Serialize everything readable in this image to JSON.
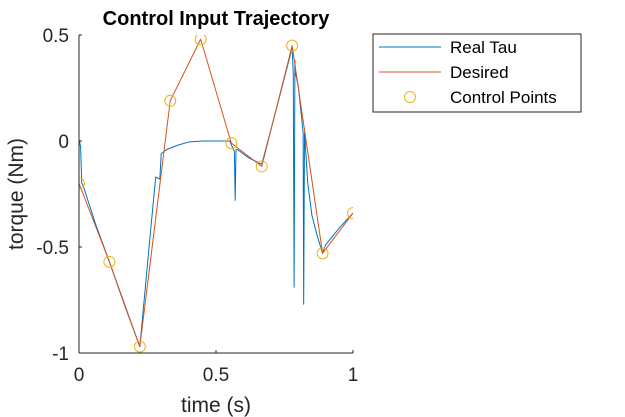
{
  "chart_data": {
    "type": "line",
    "title": "Control Input Trajectory",
    "xlabel": "time (s)",
    "ylabel": "torque (Nm)",
    "xlim": [
      0,
      1
    ],
    "ylim": [
      -1,
      0.5
    ],
    "xticks": [
      0,
      0.5,
      1
    ],
    "xtick_labels": [
      "0",
      "0.5",
      "1"
    ],
    "yticks": [
      0.5,
      0,
      -0.5,
      -1
    ],
    "ytick_labels": [
      "0.5",
      "0",
      "-0.5",
      "-1"
    ],
    "grid": false,
    "legend_position": "outside-right-top",
    "series": [
      {
        "name": "Real Tau",
        "color": "#0072BD",
        "style": "line",
        "x": [
          0,
          0.002,
          0.006,
          0.01,
          0.015,
          0.06,
          0.111,
          0.165,
          0.222,
          0.24,
          0.26,
          0.28,
          0.295,
          0.3,
          0.32,
          0.34,
          0.36,
          0.4,
          0.45,
          0.5,
          0.55,
          0.567,
          0.57,
          0.573,
          0.578,
          0.62,
          0.667,
          0.72,
          0.778,
          0.782,
          0.785,
          0.788,
          0.79,
          0.8,
          0.81,
          0.818,
          0.82,
          0.823,
          0.825,
          0.826,
          0.835,
          0.85,
          0.87,
          0.889,
          0.9,
          0.95,
          1.0
        ],
        "y": [
          0,
          0.0,
          -0.03,
          -0.2,
          -0.21,
          -0.39,
          -0.57,
          -0.77,
          -0.97,
          -0.72,
          -0.44,
          -0.17,
          -0.18,
          -0.06,
          -0.04,
          -0.03,
          -0.02,
          -0.005,
          0.0,
          0.0,
          0.0,
          -0.05,
          -0.28,
          -0.04,
          -0.04,
          -0.08,
          -0.11,
          0.15,
          0.44,
          0.32,
          -0.69,
          0.38,
          0.32,
          0.26,
          0.14,
          0.04,
          -0.77,
          0.04,
          0.03,
          -0.02,
          -0.2,
          -0.35,
          -0.45,
          -0.53,
          -0.49,
          -0.41,
          -0.34
        ]
      },
      {
        "name": "Desired",
        "color": "#D95319",
        "style": "line",
        "x": [
          0,
          0.111,
          0.222,
          0.333,
          0.444,
          0.556,
          0.667,
          0.778,
          0.889,
          1.0
        ],
        "y": [
          -0.2,
          -0.57,
          -0.97,
          0.19,
          0.48,
          -0.01,
          -0.12,
          0.45,
          -0.53,
          -0.34
        ]
      },
      {
        "name": "Control Points",
        "color": "#EDB120",
        "style": "markers",
        "x": [
          0,
          0.111,
          0.222,
          0.333,
          0.444,
          0.556,
          0.667,
          0.778,
          0.889,
          1.0
        ],
        "y": [
          -0.2,
          -0.57,
          -0.97,
          0.19,
          0.48,
          -0.01,
          -0.12,
          0.45,
          -0.53,
          -0.34
        ]
      }
    ]
  }
}
